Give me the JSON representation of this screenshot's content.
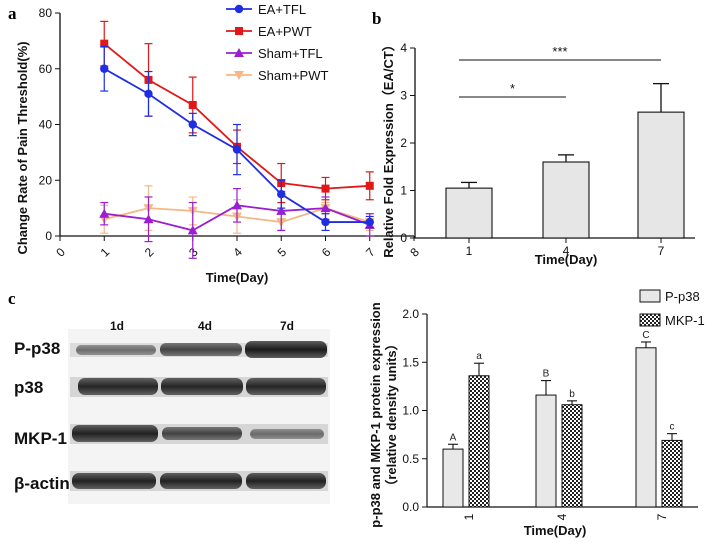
{
  "chart_data": [
    {
      "panel": "a",
      "type": "line",
      "title": "",
      "xlabel": "Time(Day)",
      "ylabel": "Change Rate of Pain  Threshold(%)",
      "xlim": [
        0,
        8
      ],
      "ylim": [
        0,
        80
      ],
      "xticks": [
        "0",
        "1",
        "2",
        "3",
        "4",
        "5",
        "6",
        "7",
        "8"
      ],
      "yticks": [
        "0",
        "20",
        "40",
        "60",
        "80"
      ],
      "legend_position": "top-right",
      "series": [
        {
          "name": "EA+TFL",
          "color": "#1f2ee0",
          "marker": "circle",
          "x": [
            1,
            2,
            3,
            4,
            5,
            6,
            7
          ],
          "y": [
            60,
            51,
            40,
            31,
            15,
            5,
            5
          ],
          "err": [
            8,
            8,
            4,
            9,
            5,
            3,
            2
          ]
        },
        {
          "name": "EA+PWT",
          "color": "#e11818",
          "marker": "square",
          "x": [
            1,
            2,
            3,
            4,
            5,
            6,
            7
          ],
          "y": [
            69,
            56,
            47,
            32,
            19,
            17,
            18
          ],
          "err": [
            8,
            13,
            10,
            6,
            7,
            4,
            5
          ]
        },
        {
          "name": "Sham+TFL",
          "color": "#9b1fd0",
          "marker": "triangle",
          "x": [
            1,
            2,
            3,
            4,
            5,
            6,
            7
          ],
          "y": [
            8,
            6,
            2,
            11,
            9,
            10,
            4
          ],
          "err": [
            4,
            8,
            10,
            6,
            7,
            4,
            4
          ]
        },
        {
          "name": "Sham+PWT",
          "color": "#f5b884",
          "marker": "triangle-down",
          "x": [
            1,
            2,
            3,
            4,
            5,
            6,
            7
          ],
          "y": [
            6,
            10,
            9,
            7,
            5,
            10,
            5
          ],
          "err": [
            5,
            8,
            5,
            6,
            3,
            2,
            3
          ]
        }
      ]
    },
    {
      "panel": "b",
      "type": "bar",
      "title": "",
      "xlabel": "Time(Day)",
      "ylabel": "Relative  Fold Expression（EA/CT）",
      "categories": [
        "1",
        "4",
        "7"
      ],
      "values": [
        1.05,
        1.6,
        2.65
      ],
      "err": [
        0.12,
        0.15,
        0.6
      ],
      "ylim": [
        0,
        4
      ],
      "yticks": [
        "0",
        "1",
        "2",
        "3",
        "4"
      ],
      "color": "#e6e6e6",
      "significance": [
        {
          "from": "1",
          "to": "4",
          "label": "*"
        },
        {
          "from": "1",
          "to": "7",
          "label": "***"
        }
      ]
    },
    {
      "panel": "c",
      "type": "bar",
      "title": "",
      "xlabel": "Time(Day)",
      "ylabel": "p-p38 and MKP-1 protein expression",
      "ylabel2": "（relative density units）",
      "categories": [
        "1",
        "4",
        "7"
      ],
      "ylim": [
        0,
        2.0
      ],
      "yticks": [
        "0.0",
        "0.5",
        "1.0",
        "1.5",
        "2.0"
      ],
      "legend_position": "top-right",
      "series": [
        {
          "name": "P-p38",
          "values": [
            0.6,
            1.16,
            1.65
          ],
          "err": [
            0.05,
            0.15,
            0.06
          ],
          "letters": [
            "A",
            "B",
            "C"
          ],
          "pattern": "solid"
        },
        {
          "name": "MKP-1",
          "values": [
            1.36,
            1.06,
            0.69
          ],
          "err": [
            0.13,
            0.04,
            0.07
          ],
          "letters": [
            "a",
            "b",
            "c"
          ],
          "pattern": "checker"
        }
      ]
    }
  ],
  "panels": {
    "a": "a",
    "b": "b",
    "c": "c"
  },
  "blot": {
    "lanes": [
      "1d",
      "4d",
      "7d"
    ],
    "rows": [
      "P-p38",
      "p38",
      "MKP-1",
      "β-actin"
    ]
  }
}
